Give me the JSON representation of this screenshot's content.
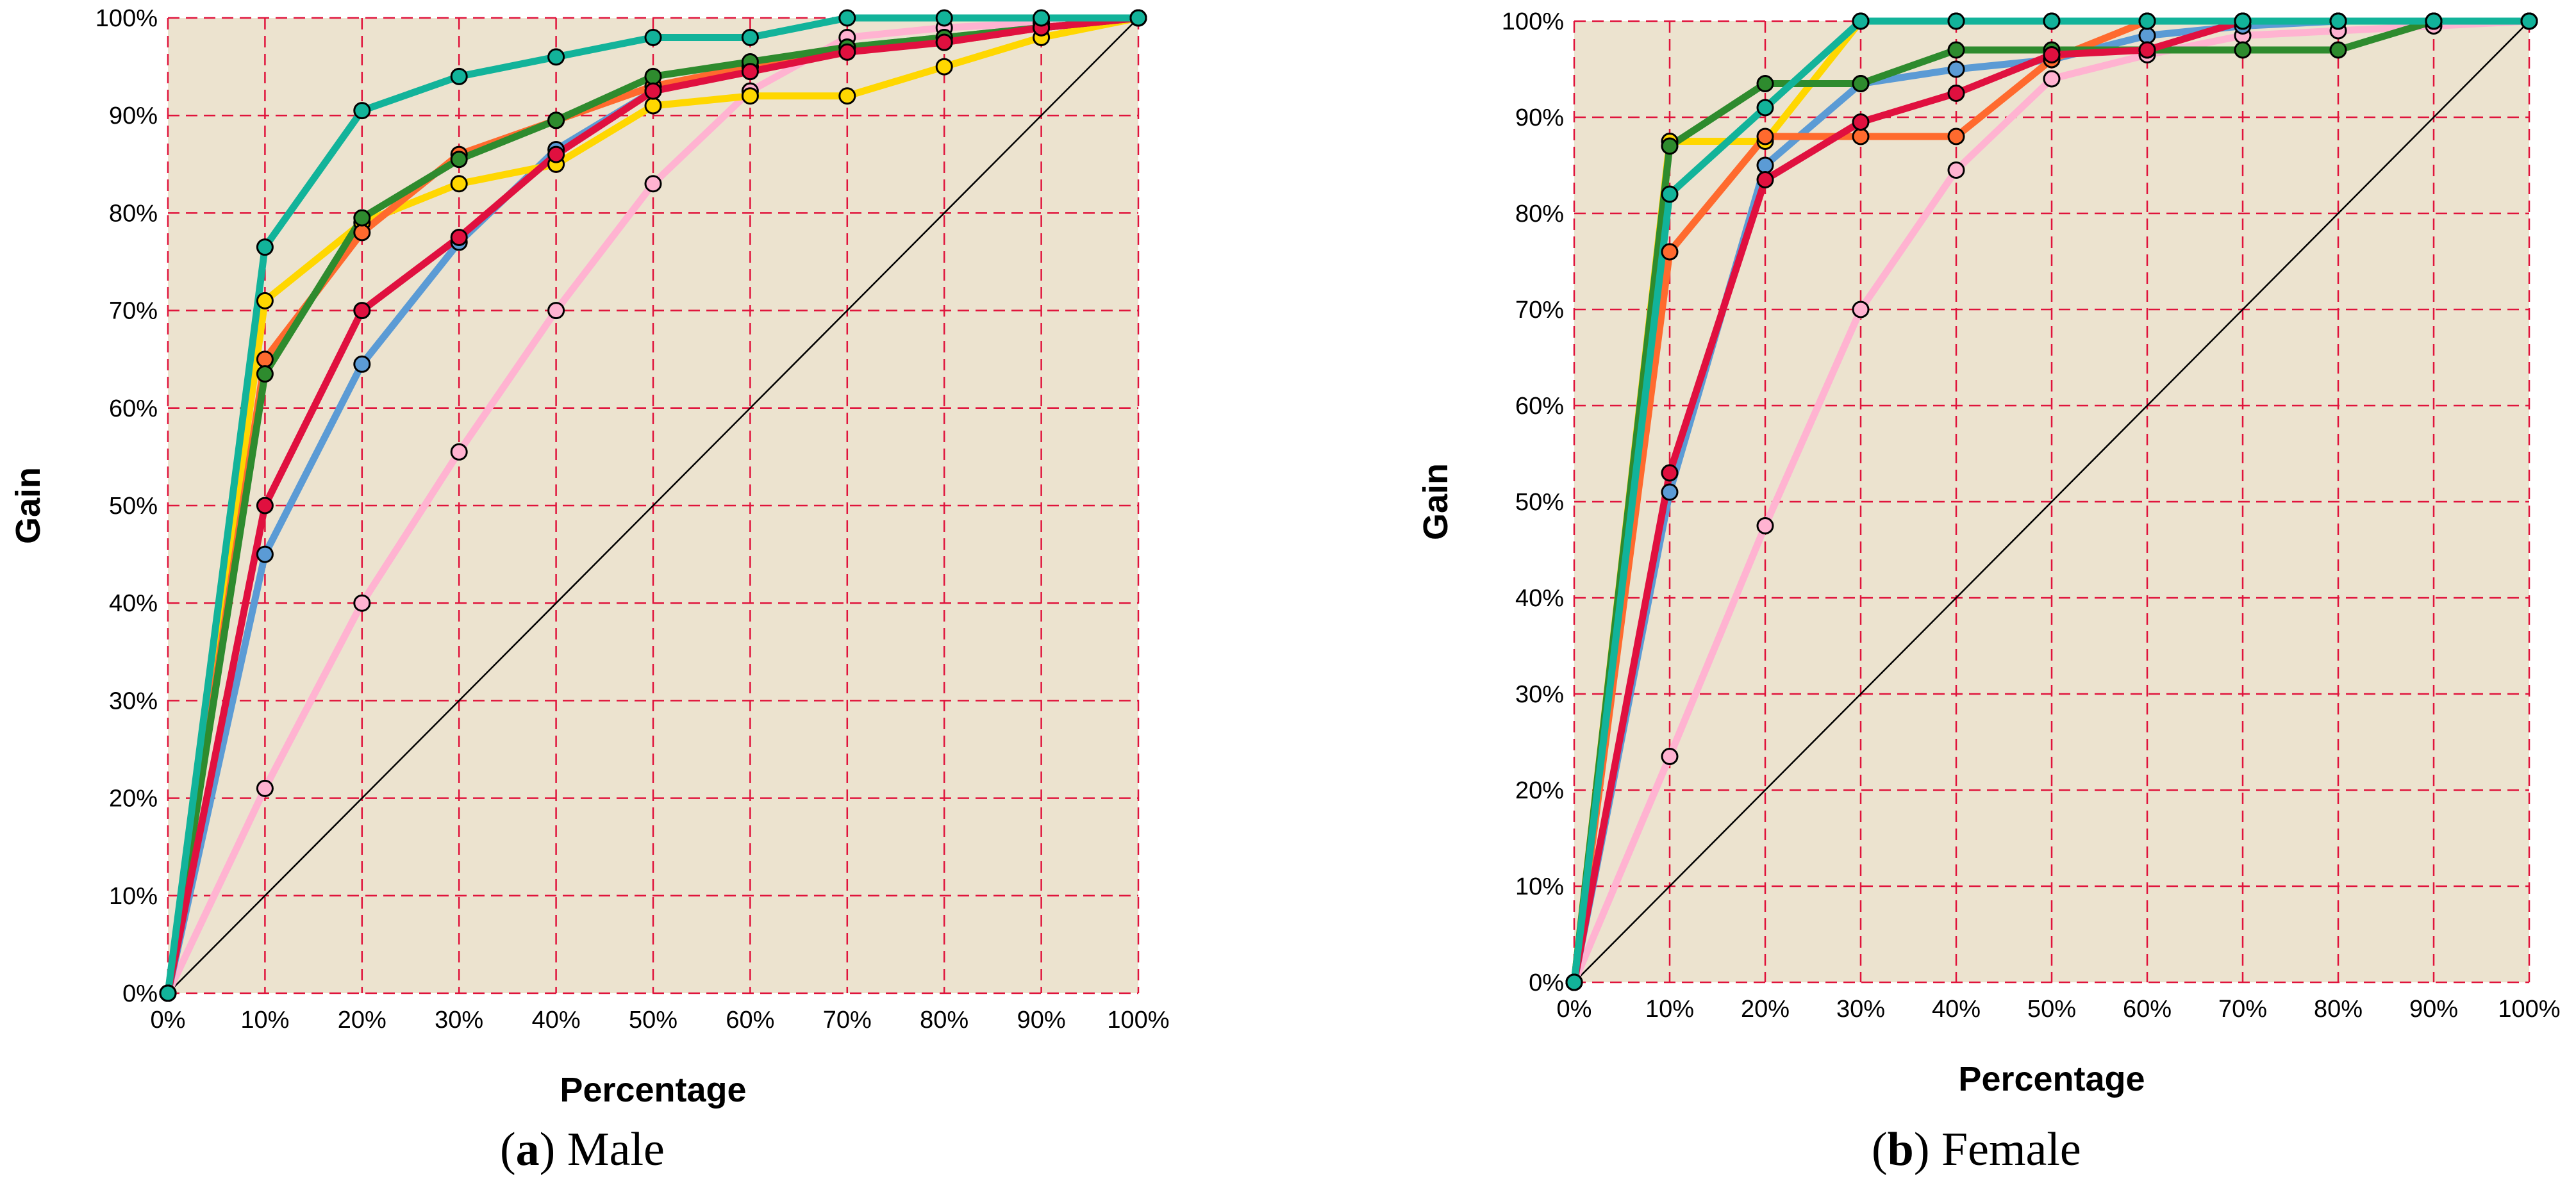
{
  "chart_data": [
    {
      "type": "line",
      "panel_letter": "a",
      "panel_title": "Male",
      "xlabel": "Percentage",
      "ylabel": "Gain",
      "xlim": [
        0,
        100
      ],
      "ylim": [
        0,
        100
      ],
      "x_ticks": [
        "0%",
        "10%",
        "20%",
        "30%",
        "40%",
        "50%",
        "60%",
        "70%",
        "80%",
        "90%",
        "100%"
      ],
      "y_ticks": [
        "0%",
        "10%",
        "20%",
        "30%",
        "40%",
        "50%",
        "60%",
        "70%",
        "80%",
        "90%",
        "100%"
      ],
      "grid": true,
      "reference_line": "diagonal",
      "x": [
        0,
        10,
        20,
        30,
        40,
        50,
        60,
        70,
        80,
        90,
        100
      ],
      "series": [
        {
          "color": "#ffb3d1",
          "values": [
            0,
            21,
            40,
            55.5,
            70,
            83,
            92.5,
            98,
            99,
            99.5,
            100
          ]
        },
        {
          "color": "#5b9bd5",
          "values": [
            0,
            45,
            64.5,
            77,
            86.5,
            92.5,
            95,
            97,
            98,
            99,
            100
          ]
        },
        {
          "color": "#ffd700",
          "values": [
            0,
            71,
            79,
            83,
            85,
            91,
            92,
            92,
            95,
            98,
            100
          ]
        },
        {
          "color": "#ff6a2e",
          "values": [
            0,
            65,
            78,
            86,
            89.5,
            93,
            95,
            97,
            97.5,
            99,
            100
          ]
        },
        {
          "color": "#2e8b2e",
          "values": [
            0,
            63.5,
            79.5,
            85.5,
            89.5,
            94,
            95.5,
            97,
            98,
            99,
            100
          ]
        },
        {
          "color": "#e0103f",
          "values": [
            0,
            50,
            70,
            77.5,
            86,
            92.5,
            94.5,
            96.5,
            97.5,
            99,
            100
          ]
        },
        {
          "color": "#12b39a",
          "values": [
            0,
            76.5,
            90.5,
            94,
            96,
            98,
            98,
            100,
            100,
            100,
            100
          ]
        }
      ]
    },
    {
      "type": "line",
      "panel_letter": "b",
      "panel_title": "Female",
      "xlabel": "Percentage",
      "ylabel": "Gain",
      "xlim": [
        0,
        100
      ],
      "ylim": [
        0,
        100
      ],
      "x_ticks": [
        "0%",
        "10%",
        "20%",
        "30%",
        "40%",
        "50%",
        "60%",
        "70%",
        "80%",
        "90%",
        "100%"
      ],
      "y_ticks": [
        "0%",
        "10%",
        "20%",
        "30%",
        "40%",
        "50%",
        "60%",
        "70%",
        "80%",
        "90%",
        "100%"
      ],
      "grid": true,
      "reference_line": "diagonal",
      "x": [
        0,
        10,
        20,
        30,
        40,
        50,
        60,
        70,
        80,
        90,
        100
      ],
      "series": [
        {
          "color": "#ffb3d1",
          "values": [
            0,
            23.5,
            47.5,
            70,
            84.5,
            94,
            96.5,
            98.5,
            99,
            99.5,
            100
          ]
        },
        {
          "color": "#5b9bd5",
          "values": [
            0,
            51,
            85,
            93.5,
            95,
            96,
            98.5,
            99.5,
            100,
            100,
            100
          ]
        },
        {
          "color": "#ffd700",
          "values": [
            0,
            87.5,
            87.5,
            100,
            100,
            100,
            100,
            100,
            100,
            100,
            100
          ]
        },
        {
          "color": "#ff6a2e",
          "values": [
            0,
            76,
            88,
            88,
            88,
            96,
            100,
            100,
            100,
            100,
            100
          ]
        },
        {
          "color": "#2e8b2e",
          "values": [
            0,
            87,
            93.5,
            93.5,
            97,
            97,
            97,
            97,
            97,
            100,
            100
          ]
        },
        {
          "color": "#e0103f",
          "values": [
            0,
            53,
            83.5,
            89.5,
            92.5,
            96.5,
            97,
            100,
            100,
            100,
            100
          ]
        },
        {
          "color": "#12b39a",
          "values": [
            0,
            82,
            91,
            100,
            100,
            100,
            100,
            100,
            100,
            100,
            100
          ]
        }
      ]
    }
  ],
  "style": {
    "plot_background": "#ece3cf",
    "grid_color": "#e0143c",
    "diagonal_color": "#000000",
    "marker_stroke": "#000000"
  }
}
